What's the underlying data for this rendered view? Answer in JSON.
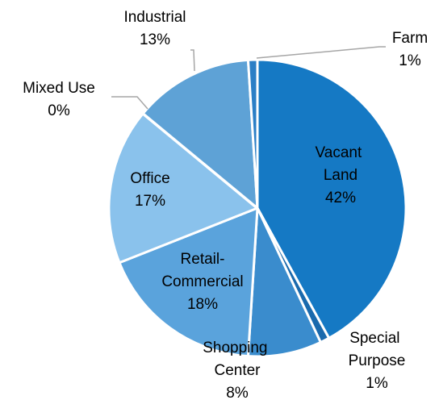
{
  "chart_data": {
    "type": "pie",
    "categories": [
      "Vacant Land",
      "Special Purpose",
      "Shopping Center",
      "Retail-Commercial",
      "Office",
      "Mixed Use",
      "Industrial",
      "Farm"
    ],
    "values": [
      42,
      1,
      8,
      18,
      17,
      0,
      13,
      1
    ],
    "value_labels": [
      "42%",
      "1%",
      "8%",
      "18%",
      "17%",
      "0%",
      "13%",
      "1%"
    ],
    "colors": [
      "#1579c4",
      "#1a6aad",
      "#3a8ccd",
      "#5aa3dc",
      "#8ac2ec",
      "#a9d1f0",
      "#5ea2d6",
      "#2b7fc6"
    ]
  }
}
